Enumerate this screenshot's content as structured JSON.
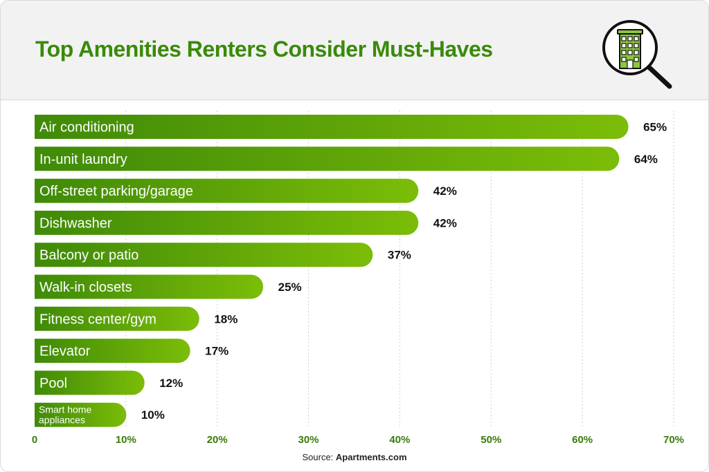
{
  "title": "Top Amenities Renters Consider Must-Haves",
  "source_label": "Source:",
  "source_name": "Apartments.com",
  "colors": {
    "title": "#3a8a0a",
    "bar_start": "#3f8a08",
    "bar_end": "#7cbd08",
    "tick": "#3a7a0a",
    "header_bg": "#f2f2f2",
    "grid": "#cfcfcf"
  },
  "header_icon": "building-magnifier-icon",
  "chart_data": {
    "type": "bar",
    "orientation": "horizontal",
    "categories": [
      "Air conditioning",
      "In-unit laundry",
      "Off-street parking/garage",
      "Dishwasher",
      "Balcony or patio",
      "Walk-in closets",
      "Fitness center/gym",
      "Elevator",
      "Pool",
      "Smart home appliances"
    ],
    "values": [
      65,
      64,
      42,
      42,
      37,
      25,
      18,
      17,
      12,
      10
    ],
    "value_labels": [
      "65%",
      "64%",
      "42%",
      "42%",
      "37%",
      "25%",
      "18%",
      "17%",
      "12%",
      "10%"
    ],
    "xlim": [
      0,
      70
    ],
    "xticks": [
      0,
      10,
      20,
      30,
      40,
      50,
      60,
      70
    ],
    "xtick_labels": [
      "0",
      "10%",
      "20%",
      "30%",
      "40%",
      "50%",
      "60%",
      "70%"
    ],
    "grid": "vertical dotted"
  }
}
